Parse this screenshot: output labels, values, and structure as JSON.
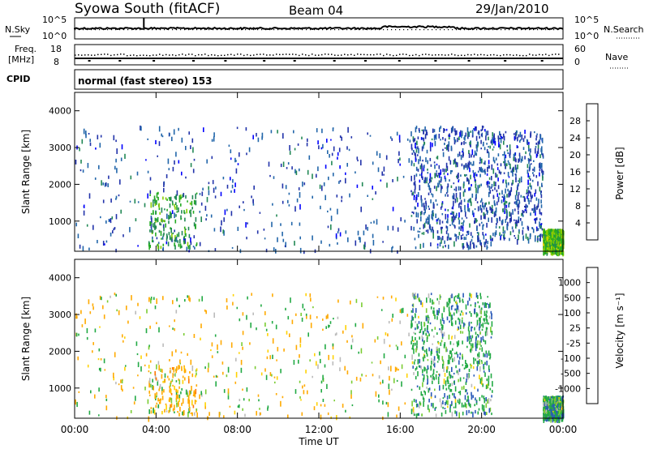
{
  "header": {
    "station": "Syowa South (fitACF)",
    "beam": "Beam 04",
    "date": "29/Jan/2010"
  },
  "noise_panel": {
    "left_label": "N.Sky",
    "right_label": "N.Search",
    "left_ticks": [
      "10^5",
      "10^0"
    ],
    "right_ticks": [
      "10^5",
      "10^0"
    ]
  },
  "freq_panel": {
    "left_label_1": "Freq.",
    "left_label_2": "[MHz]",
    "right_label": "Nave",
    "left_ticks": [
      "18",
      "8"
    ],
    "right_ticks": [
      "60",
      "0"
    ]
  },
  "cpid": {
    "label": "CPID",
    "text": "normal (fast stereo) 153"
  },
  "time_axis": {
    "label": "Time UT",
    "ticks": [
      "00:00",
      "04:00",
      "08:00",
      "12:00",
      "16:00",
      "20:00",
      "00:00"
    ]
  },
  "power_colorbar": {
    "label": "Power [dB]",
    "ticks": [
      "28",
      "24",
      "20",
      "16",
      "12",
      "8",
      "4"
    ],
    "colors": [
      "#ff0000",
      "#ff6600",
      "#ff9900",
      "#ffcc00",
      "#88cc00",
      "#22aa22",
      "#228855",
      "#2266aa",
      "#2233aa",
      "#0000ff"
    ]
  },
  "velocity_colorbar": {
    "label": "Velocity [m s⁻¹]",
    "ticks": [
      "1000",
      "500",
      "100",
      "25",
      "-25",
      "-100",
      "-500",
      "-1000"
    ],
    "colors": [
      "#0a1aa8",
      "#2a5ab8",
      "#22aa44",
      "#7acc33",
      "#bbbbbb",
      "#ffd200",
      "#ffaa00",
      "#ff7700",
      "#ff3300",
      "#ee0000"
    ]
  },
  "chart_data": [
    {
      "type": "heatmap",
      "title": "Power",
      "xlabel": "Time UT",
      "ylabel": "Slant Range [km]",
      "xlim": [
        0,
        24
      ],
      "ylim": [
        180,
        4500
      ],
      "y_ticks": [
        1000,
        2000,
        3000,
        4000
      ],
      "x_ticks": [
        "00:00",
        "04:00",
        "08:00",
        "12:00",
        "16:00",
        "20:00",
        "00:00"
      ],
      "colorbar_label": "Power [dB]",
      "colorbar_range": [
        0,
        30
      ],
      "scatter_regions": [
        {
          "t_start": 0.0,
          "t_end": 16.5,
          "range_min": 200,
          "range_max": 3600,
          "density": "sparse",
          "dominant_value_db": 5
        },
        {
          "t_start": 16.5,
          "t_end": 20.5,
          "range_min": 300,
          "range_max": 3600,
          "density": "dense",
          "dominant_value_db": 5
        },
        {
          "t_start": 20.5,
          "t_end": 23.0,
          "range_min": 500,
          "range_max": 3500,
          "density": "sparse",
          "dominant_value_db": 5
        },
        {
          "t_start": 3.6,
          "t_end": 6.0,
          "range_min": 300,
          "range_max": 1800,
          "density": "medium",
          "dominant_value_db": 12
        },
        {
          "t_start": 23.0,
          "t_end": 24.0,
          "range_min": 180,
          "range_max": 800,
          "density": "dense",
          "dominant_value_db": 14
        }
      ]
    },
    {
      "type": "heatmap",
      "title": "Velocity",
      "xlabel": "Time UT",
      "ylabel": "Slant Range [km]",
      "xlim": [
        0,
        24
      ],
      "ylim": [
        180,
        4500
      ],
      "y_ticks": [
        1000,
        2000,
        3000,
        4000
      ],
      "x_ticks": [
        "00:00",
        "04:00",
        "08:00",
        "12:00",
        "16:00",
        "20:00",
        "00:00"
      ],
      "colorbar_label": "Velocity [m s-1]",
      "colorbar_levels": [
        1000,
        500,
        100,
        25,
        -25,
        -100,
        -500,
        -1000
      ],
      "scatter_regions": [
        {
          "t_start": 0.0,
          "t_end": 16.5,
          "range_min": 200,
          "range_max": 3600,
          "density": "sparse",
          "dominant_value": -60
        },
        {
          "t_start": 16.5,
          "t_end": 20.5,
          "range_min": 300,
          "range_max": 3600,
          "density": "dense",
          "dominant_value": 300
        },
        {
          "t_start": 3.6,
          "t_end": 6.0,
          "range_min": 300,
          "range_max": 1800,
          "density": "medium",
          "dominant_value": -200
        },
        {
          "t_start": 23.0,
          "t_end": 24.0,
          "range_min": 180,
          "range_max": 800,
          "density": "dense",
          "dominant_value": 300
        }
      ]
    }
  ]
}
